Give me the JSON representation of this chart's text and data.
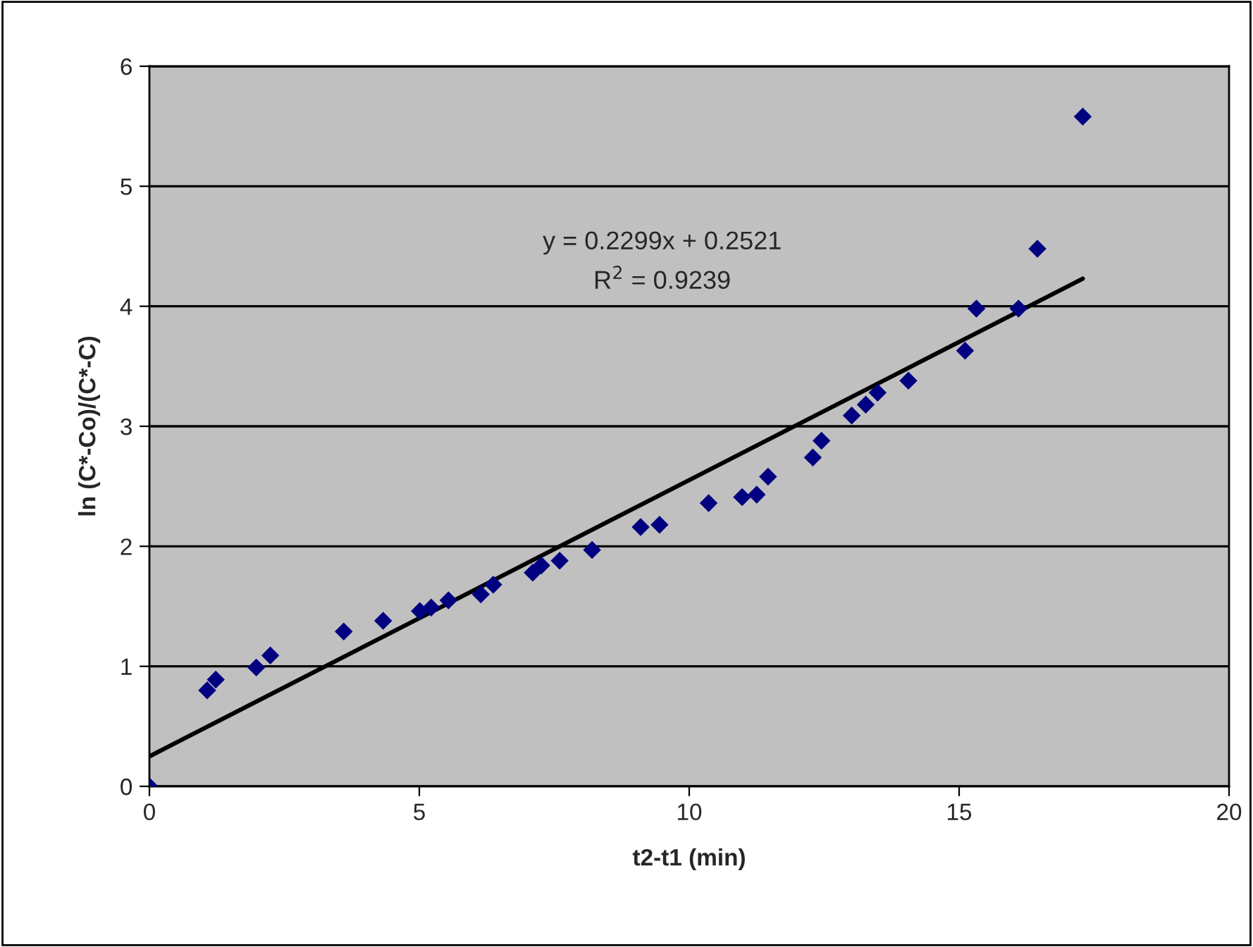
{
  "chart_data": {
    "type": "scatter",
    "xlabel": "t2-t1 (min)",
    "ylabel": "ln (C*-Co)/(C*-C)",
    "xlim": [
      0,
      20
    ],
    "xticks": [
      0,
      5,
      10,
      15,
      20
    ],
    "ylim": [
      0,
      6
    ],
    "yticks": [
      0,
      1,
      2,
      3,
      4,
      5,
      6
    ],
    "grid": "y",
    "legend": false,
    "annotations": [
      "y = 0.2299x + 0.2521",
      "R$^{2}$ = 0.9239"
    ],
    "series": [
      {
        "marker": "diamond",
        "color": "#000080",
        "x": [
          0,
          1.07,
          1.23,
          1.98,
          2.24,
          3.6,
          4.33,
          5.01,
          5.22,
          5.54,
          6.14,
          6.37,
          7.1,
          7.26,
          7.6,
          8.2,
          9.1,
          9.45,
          10.36,
          10.98,
          11.25,
          11.46,
          12.29,
          12.45,
          13.01,
          13.27,
          13.49,
          14.06,
          15.11,
          15.32,
          16.1,
          16.45,
          17.29
        ],
        "values": [
          0,
          0.8,
          0.89,
          0.99,
          1.09,
          1.29,
          1.38,
          1.46,
          1.49,
          1.55,
          1.6,
          1.68,
          1.78,
          1.84,
          1.88,
          1.97,
          2.16,
          2.18,
          2.36,
          2.41,
          2.43,
          2.58,
          2.74,
          2.88,
          3.09,
          3.18,
          3.28,
          3.38,
          3.63,
          3.98,
          3.98,
          4.48,
          5.58
        ]
      },
      {
        "type": "line",
        "color": "#000000",
        "x": [
          0,
          17.29
        ],
        "values": [
          0.25,
          4.23
        ],
        "line_style": "solid",
        "marker": "none"
      }
    ]
  }
}
